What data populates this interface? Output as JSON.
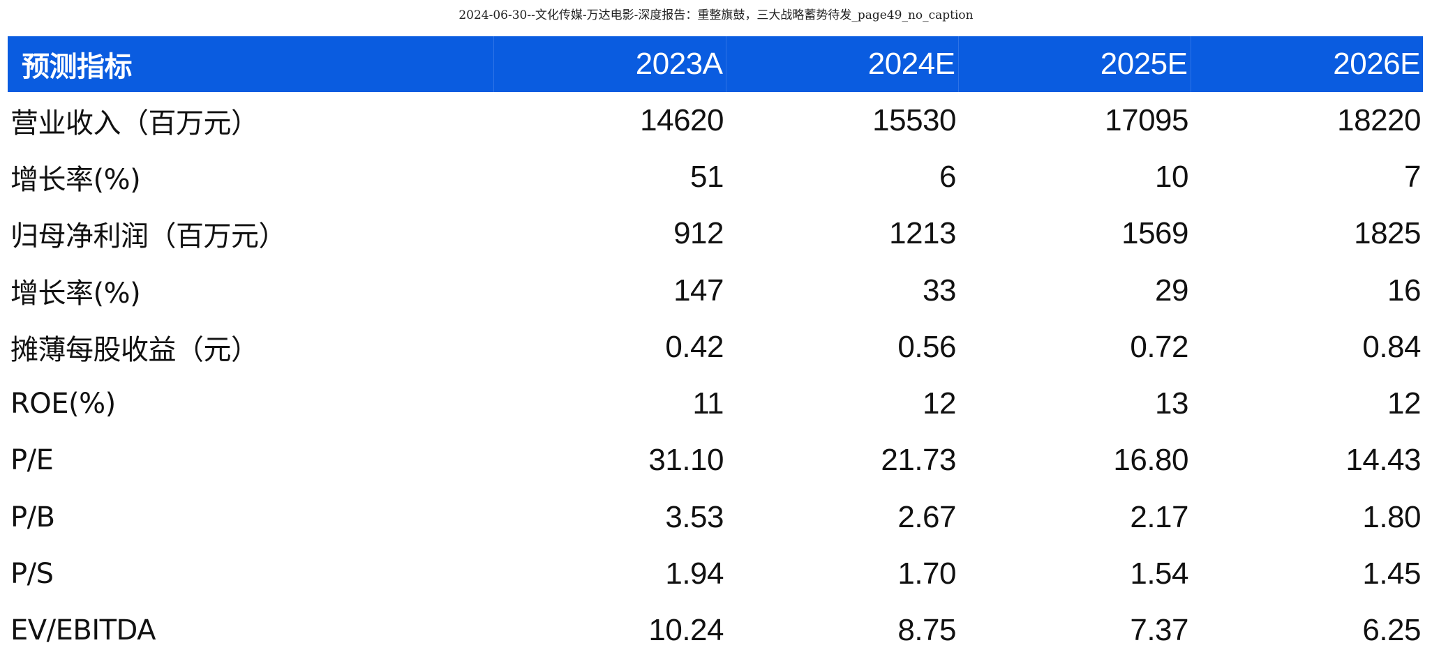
{
  "caption": "2024-06-30--文化传媒-万达电影-深度报告：重整旗鼓，三大战略蓄势待发_page49_no_caption",
  "table": {
    "header": {
      "label": "预测指标",
      "years": [
        "2023A",
        "2024E",
        "2025E",
        "2026E"
      ]
    },
    "rows": [
      {
        "label": "营业收入（百万元）",
        "values": [
          "14620",
          "15530",
          "17095",
          "18220"
        ]
      },
      {
        "label": "增长率(%)",
        "values": [
          "51",
          "6",
          "10",
          "7"
        ]
      },
      {
        "label": "归母净利润（百万元）",
        "values": [
          "912",
          "1213",
          "1569",
          "1825"
        ]
      },
      {
        "label": "增长率(%)",
        "values": [
          "147",
          "33",
          "29",
          "16"
        ]
      },
      {
        "label": "摊薄每股收益（元）",
        "values": [
          "0.42",
          "0.56",
          "0.72",
          "0.84"
        ]
      },
      {
        "label": "ROE(%)",
        "values": [
          "11",
          "12",
          "13",
          "12"
        ]
      },
      {
        "label": "P/E",
        "values": [
          "31.10",
          "21.73",
          "16.80",
          "14.43"
        ]
      },
      {
        "label": "P/B",
        "values": [
          "3.53",
          "2.67",
          "2.17",
          "1.80"
        ]
      },
      {
        "label": "P/S",
        "values": [
          "1.94",
          "1.70",
          "1.54",
          "1.45"
        ]
      },
      {
        "label": "EV/EBITDA",
        "values": [
          "10.24",
          "8.75",
          "7.37",
          "6.25"
        ]
      }
    ]
  },
  "colors": {
    "header_bg": "#0a5ce0",
    "header_text": "#ffffff",
    "body_text": "#111111"
  }
}
